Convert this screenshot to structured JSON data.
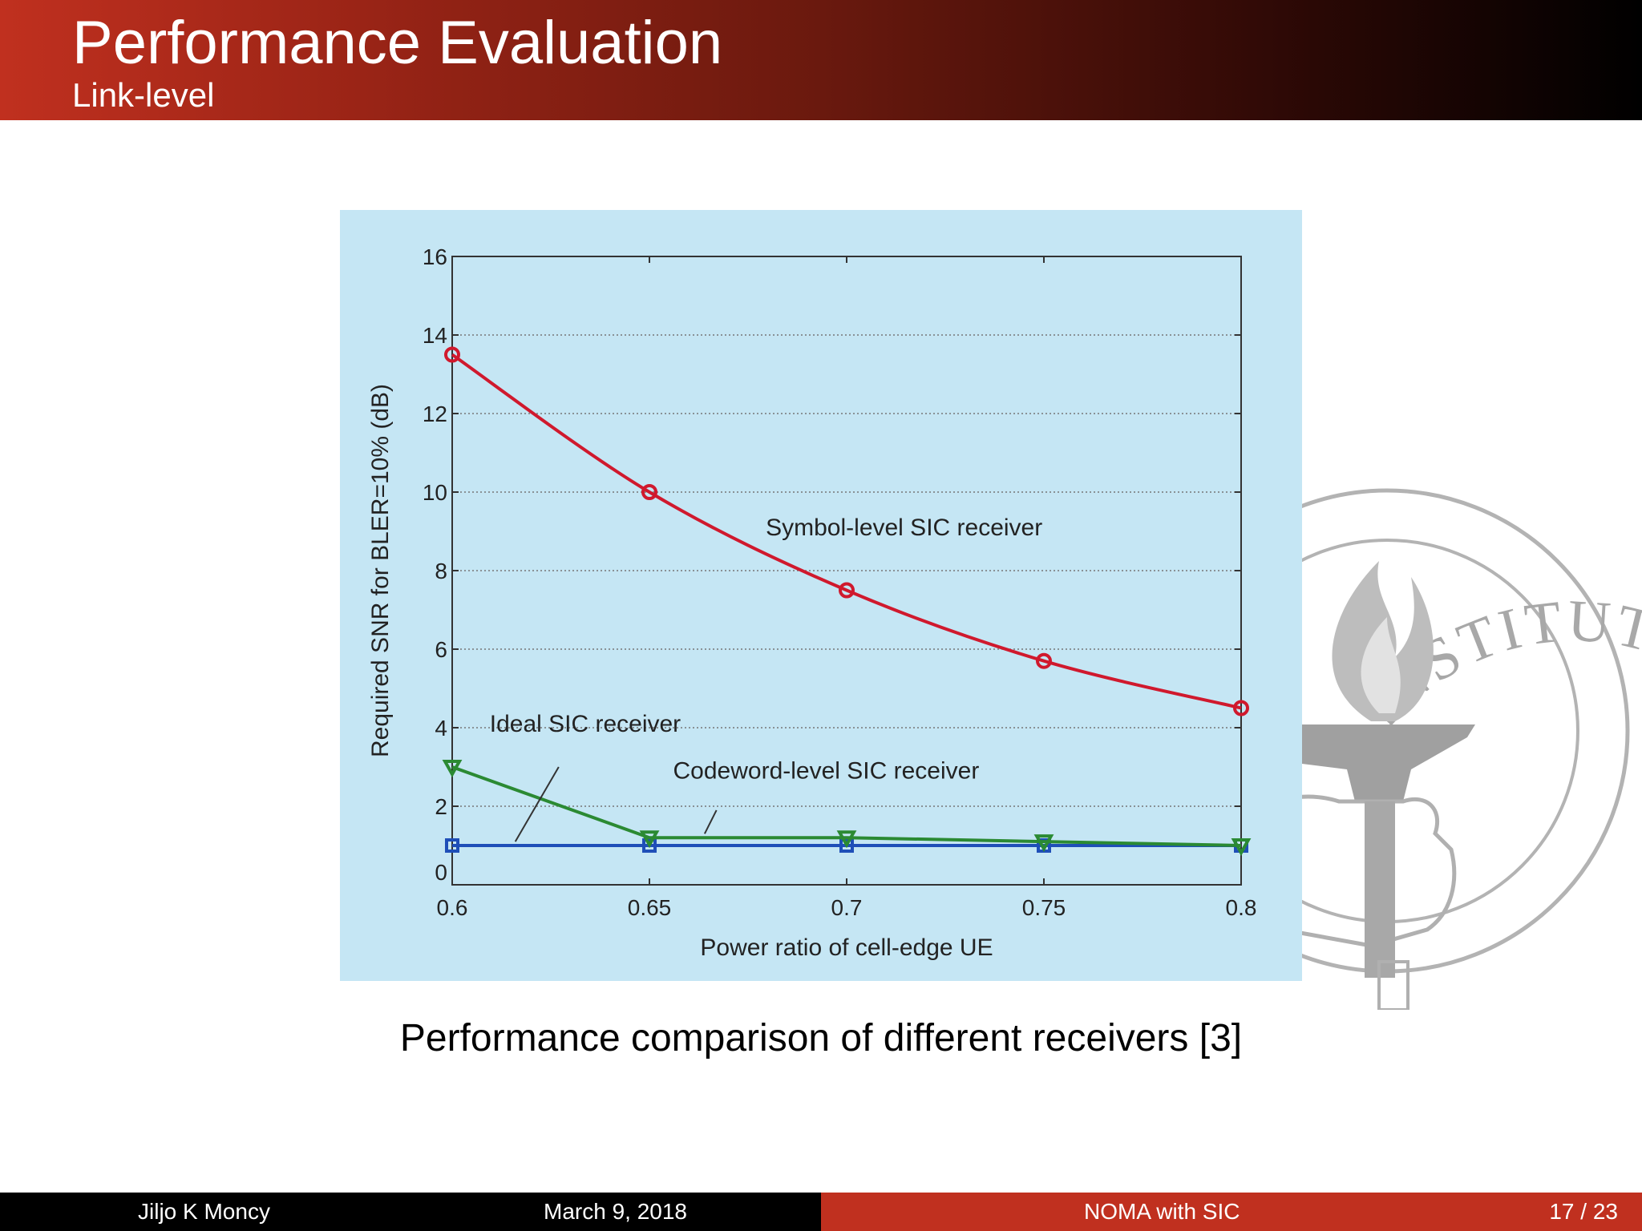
{
  "slide": {
    "title": "Performance Evaluation",
    "subtitle": "Link-level",
    "caption": "Performance comparison of different receivers [3]"
  },
  "footer": {
    "author": "Jiljo K Moncy",
    "date": "March 9, 2018",
    "topic": "NOMA with SIC",
    "page": "17 / 23"
  },
  "watermark": {
    "seal_text": "INSTITUTE OF TECHNOLOGY",
    "icon": "torch-in-hand-seal-icon"
  },
  "colors": {
    "header_start": "#c0301f",
    "header_end": "#000000",
    "chart_background": "#c5e6f4",
    "symbol_series": "#d0192d",
    "codeword_series": "#2b8a33",
    "ideal_series": "#1f4fb8"
  },
  "chart_data": {
    "type": "line",
    "xlabel": "Power ratio of cell-edge UE",
    "ylabel": "Required SNR for BLER=10% (dB)",
    "xlim": [
      0.6,
      0.8
    ],
    "ylim": [
      0,
      16
    ],
    "xticks": [
      "0.6",
      "0.65",
      "0.7",
      "0.75",
      "0.8"
    ],
    "yticks": [
      "0",
      "2",
      "4",
      "6",
      "8",
      "10",
      "12",
      "14",
      "16"
    ],
    "grid": true,
    "x": [
      0.6,
      0.65,
      0.7,
      0.75,
      0.8
    ],
    "series": [
      {
        "name": "Symbol-level SIC receiver",
        "marker": "circle",
        "color": "#d0192d",
        "values": [
          13.5,
          10.0,
          7.5,
          5.7,
          4.5
        ]
      },
      {
        "name": "Codeword-level SIC receiver",
        "marker": "triangle-down",
        "color": "#2b8a33",
        "values": [
          3.0,
          1.2,
          1.2,
          1.1,
          1.0
        ]
      },
      {
        "name": "Ideal SIC receiver",
        "marker": "square",
        "color": "#1f4fb8",
        "values": [
          1.0,
          1.0,
          1.0,
          1.0,
          1.0
        ]
      }
    ],
    "annotations": [
      {
        "text": "Symbol-level SIC receiver",
        "series": 0
      },
      {
        "text": "Ideal SIC receiver",
        "series": 2
      },
      {
        "text": "Codeword-level SIC receiver",
        "series": 1
      }
    ]
  }
}
